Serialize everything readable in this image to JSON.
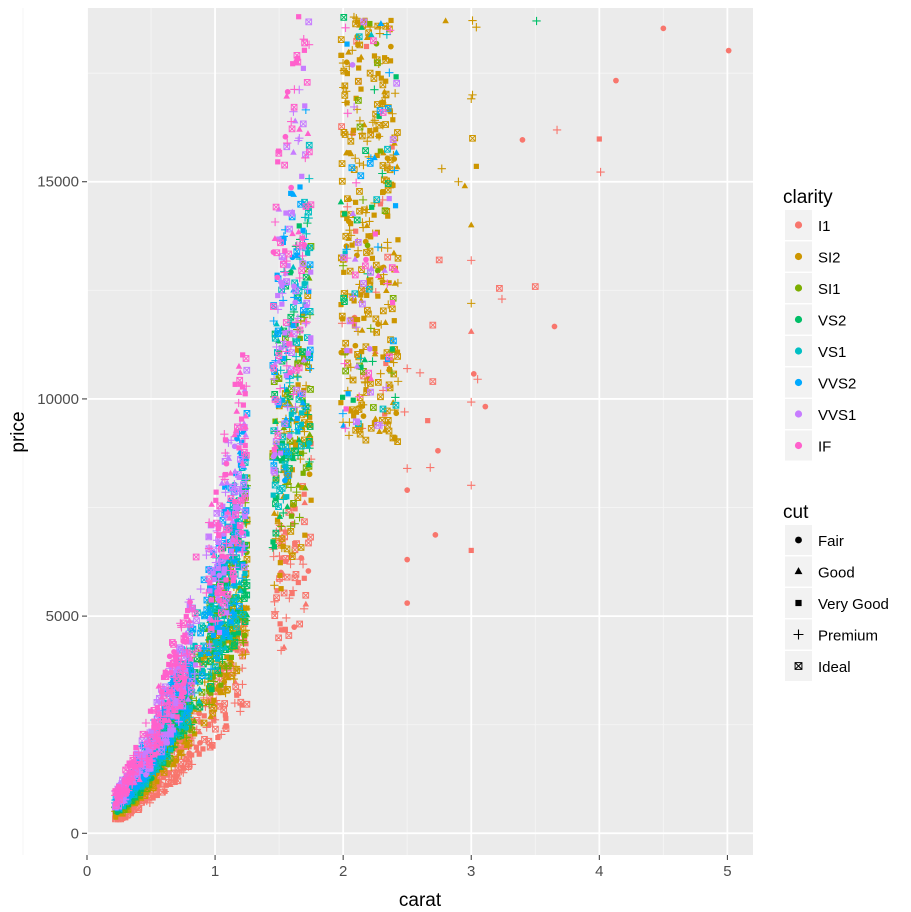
{
  "chart_data": {
    "type": "scatter",
    "title": "",
    "xlabel": "carat",
    "ylabel": "price",
    "xlim": [
      0,
      5.2
    ],
    "ylim": [
      -500,
      19000
    ],
    "x_ticks": [
      0,
      1,
      2,
      3,
      4,
      5
    ],
    "x_tick_labels": [
      "0",
      "1",
      "2",
      "3",
      "4",
      "5"
    ],
    "y_ticks": [
      0,
      5000,
      10000,
      15000
    ],
    "y_tick_labels": [
      "0",
      "5000",
      "10000",
      "15000"
    ],
    "grid": true,
    "color_legend": {
      "title": "clarity",
      "position": "right",
      "entries": [
        {
          "label": "I1",
          "color": "#F8766D"
        },
        {
          "label": "SI2",
          "color": "#CD9600"
        },
        {
          "label": "SI1",
          "color": "#7CAE00"
        },
        {
          "label": "VS2",
          "color": "#00BE67"
        },
        {
          "label": "VS1",
          "color": "#00BFC4"
        },
        {
          "label": "VVS2",
          "color": "#00A9FF"
        },
        {
          "label": "VVS1",
          "color": "#C77CFF"
        },
        {
          "label": "IF",
          "color": "#FF61CC"
        }
      ]
    },
    "shape_legend": {
      "title": "cut",
      "position": "right",
      "entries": [
        {
          "label": "Fair",
          "shape": "circle"
        },
        {
          "label": "Good",
          "shape": "triangle"
        },
        {
          "label": "Very Good",
          "shape": "square"
        },
        {
          "label": "Premium",
          "shape": "plus"
        },
        {
          "label": "Ideal",
          "shape": "square-x"
        }
      ]
    },
    "points": [
      {
        "x": 5.01,
        "y": 18018,
        "clarity": "I1",
        "cut": "Fair"
      },
      {
        "x": 4.5,
        "y": 18531,
        "clarity": "I1",
        "cut": "Fair"
      },
      {
        "x": 4.13,
        "y": 17329,
        "clarity": "I1",
        "cut": "Fair"
      },
      {
        "x": 4.01,
        "y": 15223,
        "clarity": "I1",
        "cut": "Premium"
      },
      {
        "x": 4.0,
        "y": 15984,
        "clarity": "I1",
        "cut": "Very Good"
      },
      {
        "x": 3.67,
        "y": 16193,
        "clarity": "I1",
        "cut": "Premium"
      },
      {
        "x": 3.65,
        "y": 11668,
        "clarity": "I1",
        "cut": "Fair"
      },
      {
        "x": 3.51,
        "y": 18701,
        "clarity": "VS2",
        "cut": "Premium"
      },
      {
        "x": 3.5,
        "y": 12587,
        "clarity": "I1",
        "cut": "Ideal"
      },
      {
        "x": 3.4,
        "y": 15964,
        "clarity": "I1",
        "cut": "Fair"
      },
      {
        "x": 3.24,
        "y": 12300,
        "clarity": "I1",
        "cut": "Premium"
      },
      {
        "x": 3.22,
        "y": 12545,
        "clarity": "I1",
        "cut": "Ideal"
      },
      {
        "x": 3.11,
        "y": 9823,
        "clarity": "I1",
        "cut": "Fair"
      },
      {
        "x": 3.05,
        "y": 10453,
        "clarity": "I1",
        "cut": "Premium"
      },
      {
        "x": 3.04,
        "y": 18559,
        "clarity": "SI2",
        "cut": "Premium"
      },
      {
        "x": 3.04,
        "y": 15354,
        "clarity": "SI2",
        "cut": "Very Good"
      },
      {
        "x": 3.02,
        "y": 10577,
        "clarity": "I1",
        "cut": "Fair"
      },
      {
        "x": 3.01,
        "y": 18710,
        "clarity": "SI2",
        "cut": "Premium"
      },
      {
        "x": 3.01,
        "y": 17000,
        "clarity": "SI2",
        "cut": "Premium"
      },
      {
        "x": 3.01,
        "y": 16000,
        "clarity": "SI2",
        "cut": "Ideal"
      },
      {
        "x": 3.0,
        "y": 16910,
        "clarity": "SI2",
        "cut": "Premium"
      },
      {
        "x": 3.0,
        "y": 13190,
        "clarity": "I1",
        "cut": "Premium"
      },
      {
        "x": 3.0,
        "y": 11548,
        "clarity": "I1",
        "cut": "Good"
      },
      {
        "x": 3.0,
        "y": 9928,
        "clarity": "I1",
        "cut": "Premium"
      },
      {
        "x": 3.0,
        "y": 8010,
        "clarity": "I1",
        "cut": "Premium"
      },
      {
        "x": 3.0,
        "y": 6512,
        "clarity": "I1",
        "cut": "Very Good"
      },
      {
        "x": 3.0,
        "y": 14000,
        "clarity": "SI2",
        "cut": "Good"
      },
      {
        "x": 3.0,
        "y": 12200,
        "clarity": "SI2",
        "cut": "Premium"
      },
      {
        "x": 2.95,
        "y": 14900,
        "clarity": "SI2",
        "cut": "Good"
      },
      {
        "x": 2.9,
        "y": 15000,
        "clarity": "SI2",
        "cut": "Premium"
      },
      {
        "x": 2.8,
        "y": 18700,
        "clarity": "SI2",
        "cut": "Good"
      },
      {
        "x": 2.77,
        "y": 15300,
        "clarity": "SI2",
        "cut": "Premium"
      },
      {
        "x": 2.75,
        "y": 13200,
        "clarity": "I1",
        "cut": "Ideal"
      },
      {
        "x": 2.74,
        "y": 8807,
        "clarity": "I1",
        "cut": "Fair"
      },
      {
        "x": 2.72,
        "y": 6870,
        "clarity": "I1",
        "cut": "Fair"
      },
      {
        "x": 2.7,
        "y": 10400,
        "clarity": "I1",
        "cut": "Ideal"
      },
      {
        "x": 2.68,
        "y": 8420,
        "clarity": "I1",
        "cut": "Premium"
      },
      {
        "x": 2.66,
        "y": 9500,
        "clarity": "I1",
        "cut": "Very Good"
      },
      {
        "x": 2.7,
        "y": 11700,
        "clarity": "I1",
        "cut": "Ideal"
      },
      {
        "x": 2.6,
        "y": 10600,
        "clarity": "I1",
        "cut": "Premium"
      },
      {
        "x": 2.5,
        "y": 10700,
        "clarity": "I1",
        "cut": "Premium"
      },
      {
        "x": 2.48,
        "y": 9700,
        "clarity": "I1",
        "cut": "Premium"
      },
      {
        "x": 2.5,
        "y": 8400,
        "clarity": "I1",
        "cut": "Premium"
      },
      {
        "x": 2.5,
        "y": 7900,
        "clarity": "I1",
        "cut": "Fair"
      },
      {
        "x": 2.5,
        "y": 6300,
        "clarity": "I1",
        "cut": "Fair"
      },
      {
        "x": 2.5,
        "y": 5300,
        "clarity": "I1",
        "cut": "Fair"
      }
    ]
  }
}
